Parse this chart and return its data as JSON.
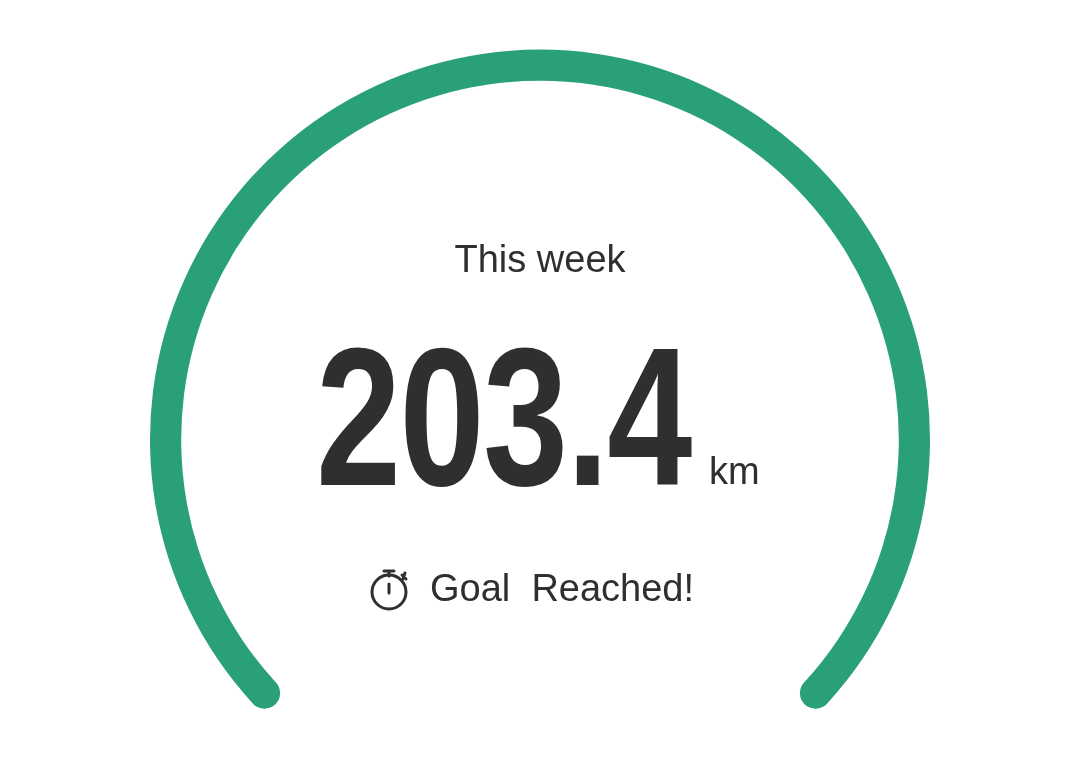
{
  "chart_data": {
    "type": "pie",
    "categories": [
      null
    ],
    "values": [
      100
    ],
    "colors": [
      "#2aa077"
    ],
    "legend": false,
    "annotations": [
      "This week",
      "203.4",
      "km",
      "Goal  Reached!"
    ]
  }
}
